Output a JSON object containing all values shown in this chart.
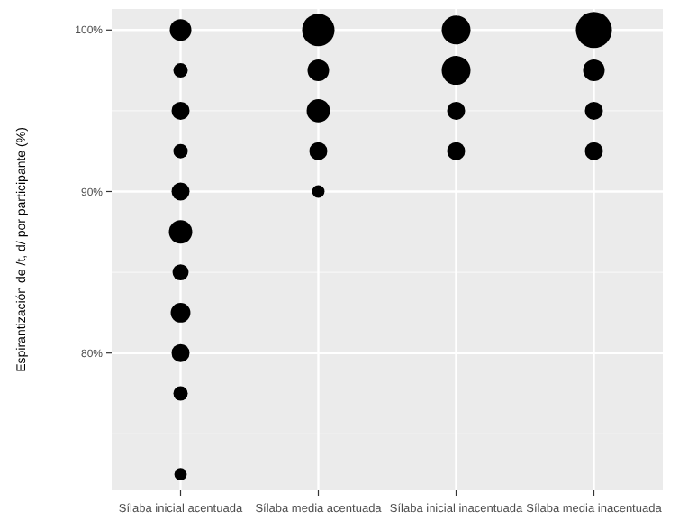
{
  "chart_data": {
    "type": "bubble",
    "ylabel": "Espirantización de /t, d/ por participante (%)",
    "categories": [
      "Sílaba inicial acentuada",
      "Sílaba media acentuada",
      "Sílaba inicial inacentuada",
      "Sílaba media inacentuada"
    ],
    "ylim": [
      71.5,
      101.3
    ],
    "yticks": [
      {
        "value": 80,
        "label": "80%"
      },
      {
        "value": 90,
        "label": "90%"
      },
      {
        "value": 100,
        "label": "100%"
      }
    ],
    "grid": true,
    "series": [
      {
        "color": "#000000",
        "x": [
          "Sílaba inicial acentuada",
          "Sílaba inicial acentuada",
          "Sílaba inicial acentuada",
          "Sílaba inicial acentuada",
          "Sílaba inicial acentuada",
          "Sílaba inicial acentuada",
          "Sílaba inicial acentuada",
          "Sílaba inicial acentuada",
          "Sílaba inicial acentuada",
          "Sílaba inicial acentuada",
          "Sílaba inicial acentuada",
          "Sílaba media acentuada",
          "Sílaba media acentuada",
          "Sílaba media acentuada",
          "Sílaba media acentuada",
          "Sílaba media acentuada",
          "Sílaba inicial inacentuada",
          "Sílaba inicial inacentuada",
          "Sílaba inicial inacentuada",
          "Sílaba inicial inacentuada",
          "Sílaba media inacentuada",
          "Sílaba media inacentuada",
          "Sílaba media inacentuada",
          "Sílaba media inacentuada"
        ],
        "values": [
          100,
          97.5,
          95,
          92.5,
          90,
          87.5,
          85,
          82.5,
          80,
          77.5,
          72.5,
          100,
          97.5,
          95,
          92.5,
          90,
          100,
          97.5,
          95,
          92.5,
          100,
          97.5,
          95,
          92.5
        ],
        "sizes": [
          0.36,
          0.16,
          0.25,
          0.16,
          0.25,
          0.42,
          0.2,
          0.3,
          0.25,
          0.16,
          0.12,
          0.81,
          0.36,
          0.42,
          0.25,
          0.12,
          0.64,
          0.64,
          0.25,
          0.25,
          1,
          0.36,
          0.25,
          0.25
        ]
      }
    ]
  }
}
